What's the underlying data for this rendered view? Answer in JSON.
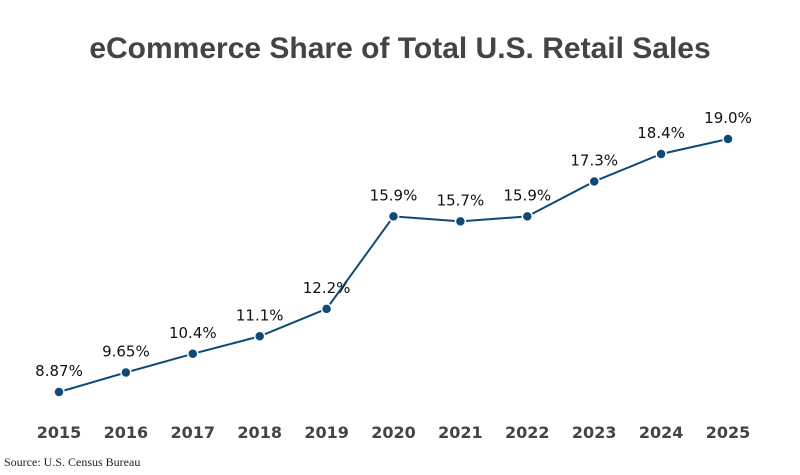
{
  "chart_data": {
    "type": "line",
    "title": "eCommerce Share of Total U.S. Retail Sales",
    "categories": [
      "2015",
      "2016",
      "2017",
      "2018",
      "2019",
      "2020",
      "2021",
      "2022",
      "2023",
      "2024",
      "2025"
    ],
    "values": [
      8.87,
      9.65,
      10.4,
      11.1,
      12.2,
      15.9,
      15.7,
      15.9,
      17.3,
      18.4,
      19.0
    ],
    "data_labels": [
      "8.87%",
      "9.65%",
      "10.4%",
      "11.1%",
      "12.2%",
      "15.9%",
      "15.7%",
      "15.9%",
      "17.3%",
      "18.4%",
      "19.0%"
    ],
    "xlabel": "",
    "ylabel": "",
    "grid": false,
    "line_color": "#0e4a77",
    "source": "Source: U.S. Census Bureau"
  }
}
